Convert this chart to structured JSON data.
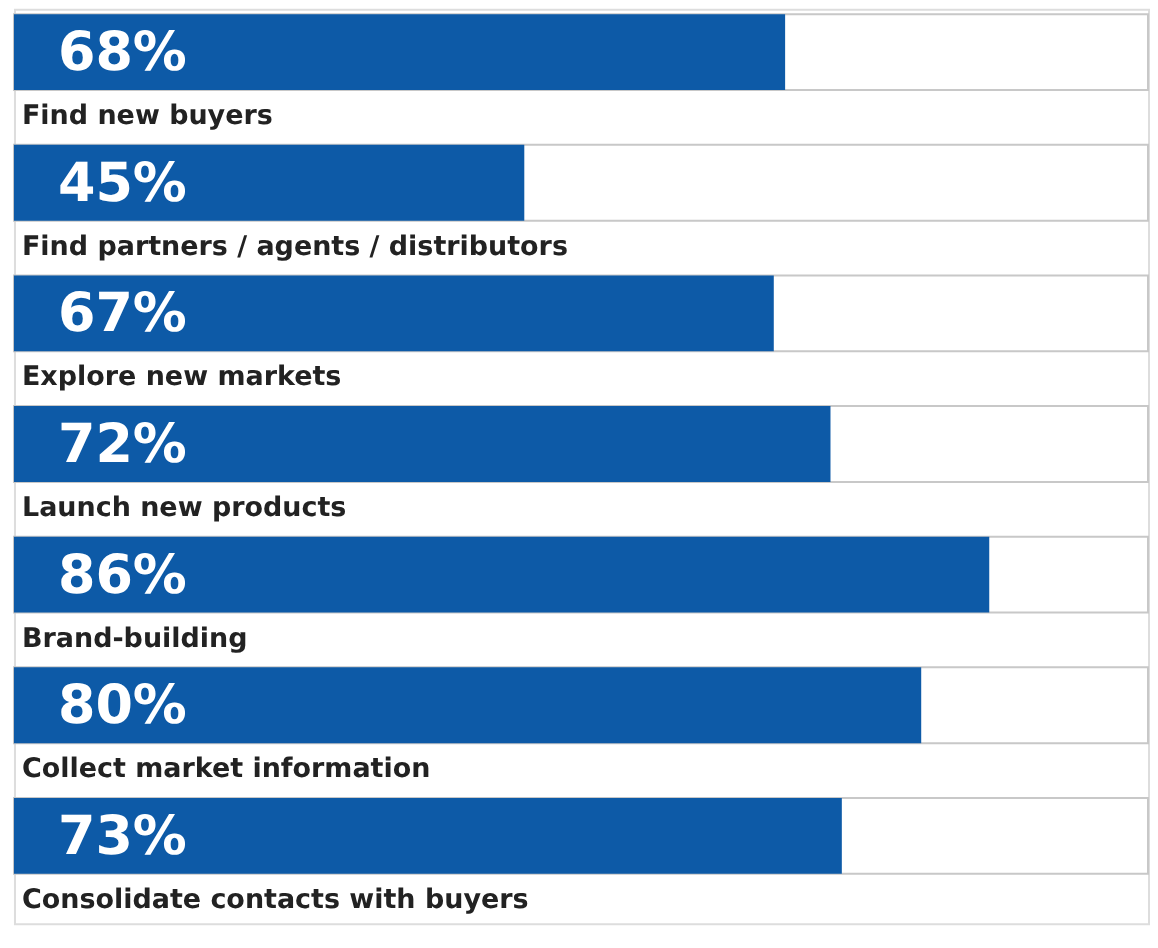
{
  "chart_data": {
    "type": "bar",
    "orientation": "horizontal",
    "categories": [
      "Find new buyers",
      "Find partners / agents / distributors",
      "Explore new markets",
      "Launch new products",
      "Brand-building",
      "Collect market information",
      "Consolidate contacts with buyers"
    ],
    "values": [
      68,
      45,
      67,
      72,
      86,
      80,
      73
    ],
    "value_labels": [
      "68%",
      "45%",
      "67%",
      "72%",
      "86%",
      "80%",
      "73%"
    ],
    "color": "#0d5aa7",
    "xlim": [
      0,
      100
    ],
    "tick_labels": false
  }
}
